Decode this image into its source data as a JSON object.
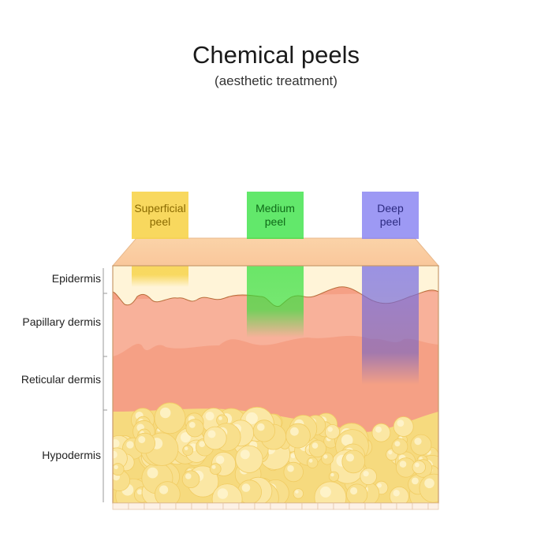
{
  "title": "Chemical peels",
  "subtitle": "(aesthetic treatment)",
  "layers": {
    "epidermis": "Epidermis",
    "papillary": "Papillary dermis",
    "reticular": "Reticular dermis",
    "hypodermis": "Hypodermis"
  },
  "peels": {
    "superficial": {
      "line1": "Superficial",
      "line2": "peel",
      "color": "#f7d44c",
      "text_color": "#8a6a00"
    },
    "medium": {
      "line1": "Medium",
      "line2": "peel",
      "color": "#2ee03a",
      "text_color": "#0f6a18"
    },
    "deep": {
      "line1": "Deep",
      "line2": "peel",
      "color": "#8c87f2",
      "text_color": "#2c2a80"
    }
  },
  "colors": {
    "epidermis": "#fff4d8",
    "papillary": "#f7ae93",
    "reticular": "#f5a085",
    "fat": "#f6da7e",
    "outline": "#c8996a"
  }
}
